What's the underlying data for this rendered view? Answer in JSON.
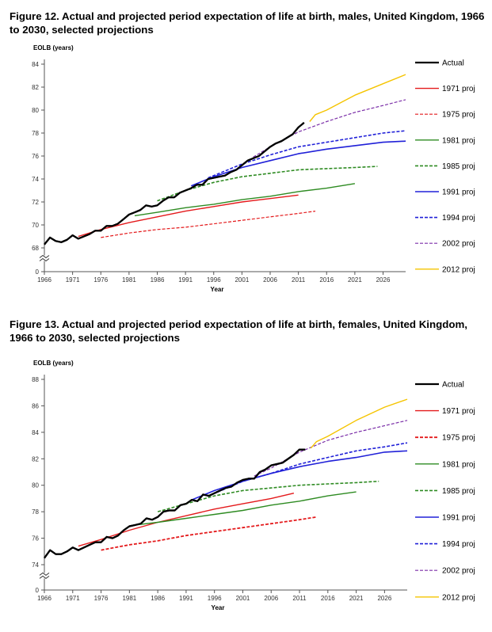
{
  "chart_data": [
    {
      "type": "line",
      "title": "Figure 12. Actual and projected period expectation of life at birth, males, United Kingdom, 1966 to 2030, selected projections",
      "ylabel": "EOLB (years)",
      "xlabel": "Year",
      "xlim": [
        1966,
        2030
      ],
      "ylim": [
        68,
        84
      ],
      "y_axis_break": true,
      "y_ticks": [
        "84",
        "82",
        "80",
        "78",
        "76",
        "74",
        "72",
        "70",
        "68",
        "0"
      ],
      "x_ticks": [
        "1966",
        "1971",
        "1976",
        "1981",
        "1986",
        "1991",
        "1996",
        "2001",
        "2006",
        "2011",
        "2016",
        "2021",
        "2026"
      ],
      "legend_position": "right",
      "series": [
        {
          "name": "Actual",
          "color": "#000000",
          "dash": "solid",
          "width": 2.2,
          "x": [
            1966,
            1967,
            1968,
            1969,
            1970,
            1971,
            1972,
            1973,
            1974,
            1975,
            1976,
            1977,
            1978,
            1979,
            1980,
            1981,
            1982,
            1983,
            1984,
            1985,
            1986,
            1987,
            1988,
            1989,
            1990,
            1991,
            1992,
            1993,
            1994,
            1995,
            1996,
            1997,
            1998,
            1999,
            2000,
            2001,
            2002,
            2003,
            2004,
            2005,
            2006,
            2007,
            2008,
            2009,
            2010,
            2011,
            2012
          ],
          "y": [
            68.3,
            68.9,
            68.6,
            68.5,
            68.7,
            69.1,
            68.8,
            69.0,
            69.2,
            69.5,
            69.5,
            69.9,
            69.9,
            70.1,
            70.5,
            70.9,
            71.1,
            71.3,
            71.7,
            71.6,
            71.7,
            72.1,
            72.4,
            72.4,
            72.8,
            73.0,
            73.2,
            73.5,
            73.5,
            74.0,
            74.1,
            74.2,
            74.3,
            74.6,
            74.8,
            75.2,
            75.6,
            75.8,
            76.0,
            76.4,
            76.8,
            77.1,
            77.3,
            77.6,
            77.9,
            78.5,
            78.9
          ]
        },
        {
          "name": "1971 proj",
          "color": "#e41a1c",
          "dash": "solid",
          "width": 1.4,
          "x": [
            1972,
            1976,
            1981,
            1986,
            1991,
            1996,
            2001,
            2006,
            2011
          ],
          "y": [
            69.0,
            69.6,
            70.2,
            70.7,
            71.2,
            71.6,
            72.0,
            72.3,
            72.6
          ]
        },
        {
          "name": "1975 proj",
          "color": "#e41a1c",
          "dash": "4,2",
          "width": 1.2,
          "x": [
            1976,
            1981,
            1986,
            1991,
            1996,
            2001,
            2006,
            2011,
            2014
          ],
          "y": [
            68.9,
            69.3,
            69.6,
            69.8,
            70.1,
            70.4,
            70.7,
            71.0,
            71.2
          ]
        },
        {
          "name": "1981 proj",
          "color": "#2e8b22",
          "dash": "solid",
          "width": 1.4,
          "x": [
            1982,
            1986,
            1991,
            1996,
            2001,
            2006,
            2011,
            2016,
            2021
          ],
          "y": [
            70.8,
            71.1,
            71.5,
            71.8,
            72.2,
            72.5,
            72.9,
            73.2,
            73.6
          ]
        },
        {
          "name": "1985 proj",
          "color": "#2e8b22",
          "dash": "4,2",
          "width": 1.6,
          "x": [
            1986,
            1991,
            1996,
            2001,
            2006,
            2011,
            2016,
            2021,
            2025
          ],
          "y": [
            72.1,
            73.0,
            73.7,
            74.2,
            74.5,
            74.8,
            74.9,
            75.0,
            75.1
          ]
        },
        {
          "name": "1991 proj",
          "color": "#2020d8",
          "dash": "solid",
          "width": 1.6,
          "x": [
            1992,
            1996,
            2001,
            2006,
            2011,
            2016,
            2021,
            2026,
            2030
          ],
          "y": [
            73.4,
            74.2,
            75.0,
            75.6,
            76.2,
            76.6,
            76.9,
            77.2,
            77.3
          ]
        },
        {
          "name": "1994 proj",
          "color": "#2020d8",
          "dash": "4,2",
          "width": 1.6,
          "x": [
            1995,
            2001,
            2006,
            2011,
            2016,
            2021,
            2026,
            2030
          ],
          "y": [
            74.1,
            75.3,
            76.1,
            76.8,
            77.2,
            77.6,
            78.0,
            78.2
          ]
        },
        {
          "name": "2002 proj",
          "color": "#7b2fa8",
          "dash": "4,2",
          "width": 1.2,
          "x": [
            2003,
            2006,
            2011,
            2016,
            2021,
            2026,
            2030
          ],
          "y": [
            75.9,
            76.8,
            78.1,
            79.0,
            79.8,
            80.4,
            80.9
          ]
        },
        {
          "name": "2012 proj",
          "color": "#f5c400",
          "dash": "solid",
          "width": 1.4,
          "x": [
            2013,
            2014,
            2016,
            2021,
            2026,
            2030
          ],
          "y": [
            79.0,
            79.6,
            80.0,
            81.3,
            82.3,
            83.1
          ]
        }
      ]
    },
    {
      "type": "line",
      "title": "Figure 13. Actual and projected period expectation of life at birth, females, United Kingdom, 1966 to 2030, selected projections",
      "ylabel": "EOLB (years)",
      "xlabel": "Year",
      "xlim": [
        1966,
        2030
      ],
      "ylim": [
        74,
        88
      ],
      "y_axis_break": true,
      "y_ticks": [
        "88",
        "86",
        "84",
        "82",
        "80",
        "78",
        "76",
        "74",
        "0"
      ],
      "x_ticks": [
        "1966",
        "1971",
        "1976",
        "1981",
        "1986",
        "1991",
        "1996",
        "2001",
        "2006",
        "2011",
        "2016",
        "2021",
        "2026"
      ],
      "legend_position": "right",
      "series": [
        {
          "name": "Actual",
          "color": "#000000",
          "dash": "solid",
          "width": 2.2,
          "x": [
            1966,
            1967,
            1968,
            1969,
            1970,
            1971,
            1972,
            1973,
            1974,
            1975,
            1976,
            1977,
            1978,
            1979,
            1980,
            1981,
            1982,
            1983,
            1984,
            1985,
            1986,
            1987,
            1988,
            1989,
            1990,
            1991,
            1992,
            1993,
            1994,
            1995,
            1996,
            1997,
            1998,
            1999,
            2000,
            2001,
            2002,
            2003,
            2004,
            2005,
            2006,
            2007,
            2008,
            2009,
            2010,
            2011,
            2012
          ],
          "y": [
            74.5,
            75.1,
            74.8,
            74.8,
            75.0,
            75.3,
            75.1,
            75.3,
            75.5,
            75.7,
            75.7,
            76.1,
            76.0,
            76.2,
            76.6,
            76.9,
            77.0,
            77.1,
            77.5,
            77.4,
            77.6,
            78.0,
            78.1,
            78.1,
            78.5,
            78.6,
            78.9,
            78.8,
            79.3,
            79.2,
            79.4,
            79.6,
            79.8,
            79.9,
            80.2,
            80.4,
            80.5,
            80.5,
            81.0,
            81.2,
            81.5,
            81.6,
            81.7,
            82.0,
            82.3,
            82.7,
            82.7
          ]
        },
        {
          "name": "1971 proj",
          "color": "#e41a1c",
          "dash": "solid",
          "width": 1.4,
          "x": [
            1972,
            1976,
            1981,
            1986,
            1991,
            1996,
            2001,
            2006,
            2010
          ],
          "y": [
            75.4,
            75.9,
            76.6,
            77.2,
            77.7,
            78.2,
            78.6,
            79.0,
            79.4
          ]
        },
        {
          "name": "1975 proj",
          "color": "#e41a1c",
          "dash": "4,2",
          "width": 1.8,
          "x": [
            1976,
            1981,
            1986,
            1991,
            1996,
            2001,
            2006,
            2011,
            2014
          ],
          "y": [
            75.1,
            75.5,
            75.8,
            76.2,
            76.5,
            76.8,
            77.1,
            77.4,
            77.6
          ]
        },
        {
          "name": "1981 proj",
          "color": "#2e8b22",
          "dash": "solid",
          "width": 1.4,
          "x": [
            1982,
            1986,
            1991,
            1996,
            2001,
            2006,
            2011,
            2016,
            2021
          ],
          "y": [
            77.0,
            77.2,
            77.5,
            77.8,
            78.1,
            78.5,
            78.8,
            79.2,
            79.5
          ]
        },
        {
          "name": "1985 proj",
          "color": "#2e8b22",
          "dash": "4,2",
          "width": 1.6,
          "x": [
            1986,
            1991,
            1996,
            2001,
            2006,
            2011,
            2016,
            2021,
            2025
          ],
          "y": [
            78.0,
            78.6,
            79.2,
            79.6,
            79.8,
            80.0,
            80.1,
            80.2,
            80.3
          ]
        },
        {
          "name": "1991 proj",
          "color": "#2020d8",
          "dash": "solid",
          "width": 1.6,
          "x": [
            1992,
            1996,
            2001,
            2006,
            2011,
            2016,
            2021,
            2026,
            2030
          ],
          "y": [
            78.9,
            79.6,
            80.3,
            80.9,
            81.4,
            81.8,
            82.1,
            82.5,
            82.6
          ]
        },
        {
          "name": "1994 proj",
          "color": "#2020d8",
          "dash": "4,2",
          "width": 1.6,
          "x": [
            1995,
            2001,
            2006,
            2011,
            2016,
            2021,
            2026,
            2030
          ],
          "y": [
            79.2,
            80.3,
            80.9,
            81.6,
            82.1,
            82.6,
            82.9,
            83.2
          ]
        },
        {
          "name": "2002 proj",
          "color": "#7b2fa8",
          "dash": "4,2",
          "width": 1.2,
          "x": [
            2003,
            2006,
            2011,
            2016,
            2021,
            2026,
            2030
          ],
          "y": [
            80.7,
            81.3,
            82.5,
            83.4,
            84.0,
            84.5,
            84.9
          ]
        },
        {
          "name": "2012 proj",
          "color": "#f5c400",
          "dash": "solid",
          "width": 1.4,
          "x": [
            2013,
            2014,
            2016,
            2021,
            2026,
            2030
          ],
          "y": [
            82.8,
            83.3,
            83.7,
            84.9,
            85.9,
            86.5
          ]
        }
      ]
    }
  ]
}
